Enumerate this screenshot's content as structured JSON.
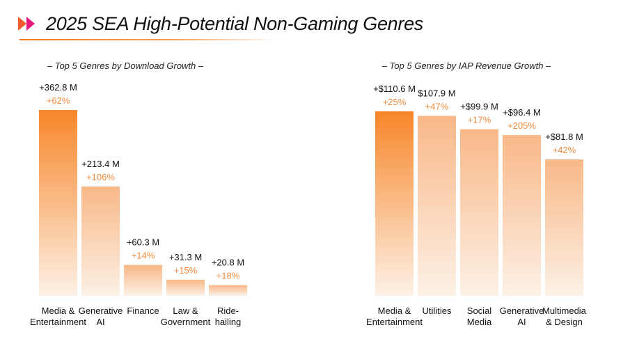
{
  "page": {
    "title": "2025 SEA High-Potential Non-Gaming Genres"
  },
  "colors": {
    "accent": "#f47a20",
    "bar_top": "#f7862a",
    "bar_bottom": "#fdf1e6",
    "bar_light_top": "#f8b888",
    "logo_a": "#f25c2a",
    "logo_b": "#e8187f"
  },
  "icons": {
    "logo": "double-chevron-logo-icon"
  },
  "chart_data": [
    {
      "type": "bar",
      "title": "– Top 5 Genres by Download Growth –",
      "categories": [
        [
          "Media &",
          "Entertainment"
        ],
        [
          "Generative",
          "AI"
        ],
        [
          "Finance"
        ],
        [
          "Law &",
          "Government"
        ],
        [
          "Ride-",
          "hailing"
        ]
      ],
      "values": [
        362.8,
        213.4,
        60.3,
        31.3,
        20.8
      ],
      "value_labels": [
        "+362.8 M",
        "+213.4 M",
        "+60.3 M",
        "+31.3 M",
        "+20.8 M"
      ],
      "growth_labels": [
        "+62%",
        "+106%",
        "+14%",
        "+15%",
        "+18%"
      ],
      "ylim": [
        0,
        362.8
      ],
      "grid": false
    },
    {
      "type": "bar",
      "title": "– Top 5 Genres by IAP Revenue Growth –",
      "categories": [
        [
          "Media &",
          "Entertainment"
        ],
        [
          "Utilities"
        ],
        [
          "Social",
          "Media"
        ],
        [
          "Generative",
          "AI"
        ],
        [
          "Multimedia",
          "& Design"
        ]
      ],
      "values": [
        110.6,
        107.9,
        99.9,
        96.4,
        81.8
      ],
      "value_labels": [
        "+$110.6 M",
        "$107.9 M",
        "+$99.9 M",
        "+$96.4 M",
        "+$81.8 M"
      ],
      "growth_labels": [
        "+25%",
        "+47%",
        "+17%",
        "+205%",
        "+42%"
      ],
      "ylim": [
        0,
        110.6
      ],
      "grid": false
    }
  ]
}
